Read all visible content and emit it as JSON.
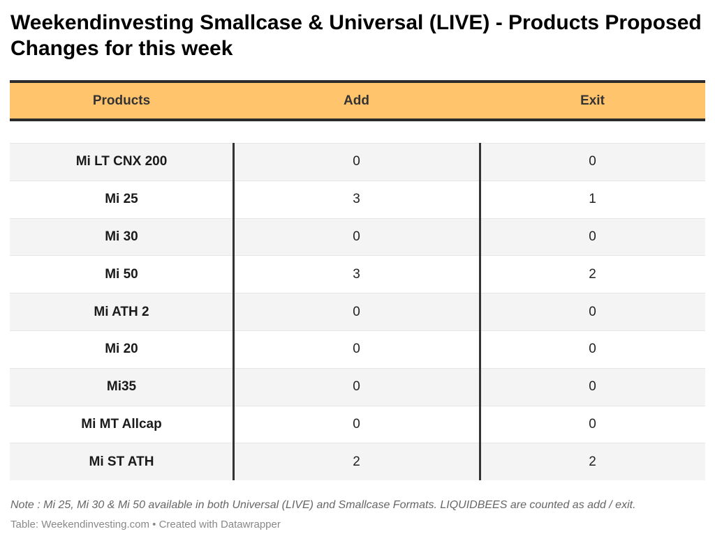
{
  "title": "Weekendinvesting Smallcase & Universal (LIVE) - Products Proposed Changes for this week",
  "colors": {
    "header_bg": "#ffc46c",
    "rule": "#2b2b2b",
    "row_alt": "#f4f4f4"
  },
  "chart_data": {
    "type": "table",
    "columns": [
      "Products",
      "Add",
      "Exit"
    ],
    "rows": [
      {
        "product": "Mi LT CNX 200",
        "add": "0",
        "exit": "0"
      },
      {
        "product": "Mi 25",
        "add": "3",
        "exit": "1"
      },
      {
        "product": "Mi 30",
        "add": "0",
        "exit": "0"
      },
      {
        "product": "Mi 50",
        "add": "3",
        "exit": "2"
      },
      {
        "product": "Mi ATH 2",
        "add": "0",
        "exit": "0"
      },
      {
        "product": "Mi 20",
        "add": "0",
        "exit": "0"
      },
      {
        "product": "Mi35",
        "add": "0",
        "exit": "0"
      },
      {
        "product": "Mi MT Allcap",
        "add": "0",
        "exit": "0"
      },
      {
        "product": "Mi ST ATH",
        "add": "2",
        "exit": "2"
      }
    ]
  },
  "note": "Note : Mi 25, Mi 30 & Mi 50 available in both Universal (LIVE) and Smallcase Formats. LIQUIDBEES are counted as add / exit.",
  "credit": "Table: Weekendinvesting.com • Created with Datawrapper"
}
